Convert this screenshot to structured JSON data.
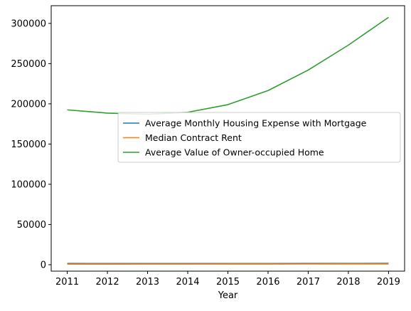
{
  "chart_data": {
    "type": "line",
    "title": "",
    "xlabel": "Year",
    "ylabel": "",
    "x": [
      2011,
      2012,
      2013,
      2014,
      2015,
      2016,
      2017,
      2018,
      2019
    ],
    "xlim": [
      2010.6,
      2019.4
    ],
    "ylim": [
      -8000,
      322000
    ],
    "yticks": [
      0,
      50000,
      100000,
      150000,
      200000,
      250000,
      300000
    ],
    "grid": false,
    "legend_position": "center-right",
    "series": [
      {
        "name": "Average Monthly Housing Expense with Mortgage",
        "color": "#1f77b4",
        "values": [
          1550,
          1500,
          1450,
          1420,
          1430,
          1480,
          1530,
          1600,
          1680
        ]
      },
      {
        "name": "Median Contract Rent",
        "color": "#ff7f0e",
        "values": [
          710,
          720,
          730,
          745,
          770,
          800,
          840,
          880,
          920
        ]
      },
      {
        "name": "Average Value of Owner-occupied Home",
        "color": "#2ca02c",
        "values": [
          192500,
          188500,
          187000,
          189500,
          199000,
          216500,
          242000,
          273000,
          307500
        ]
      }
    ]
  }
}
